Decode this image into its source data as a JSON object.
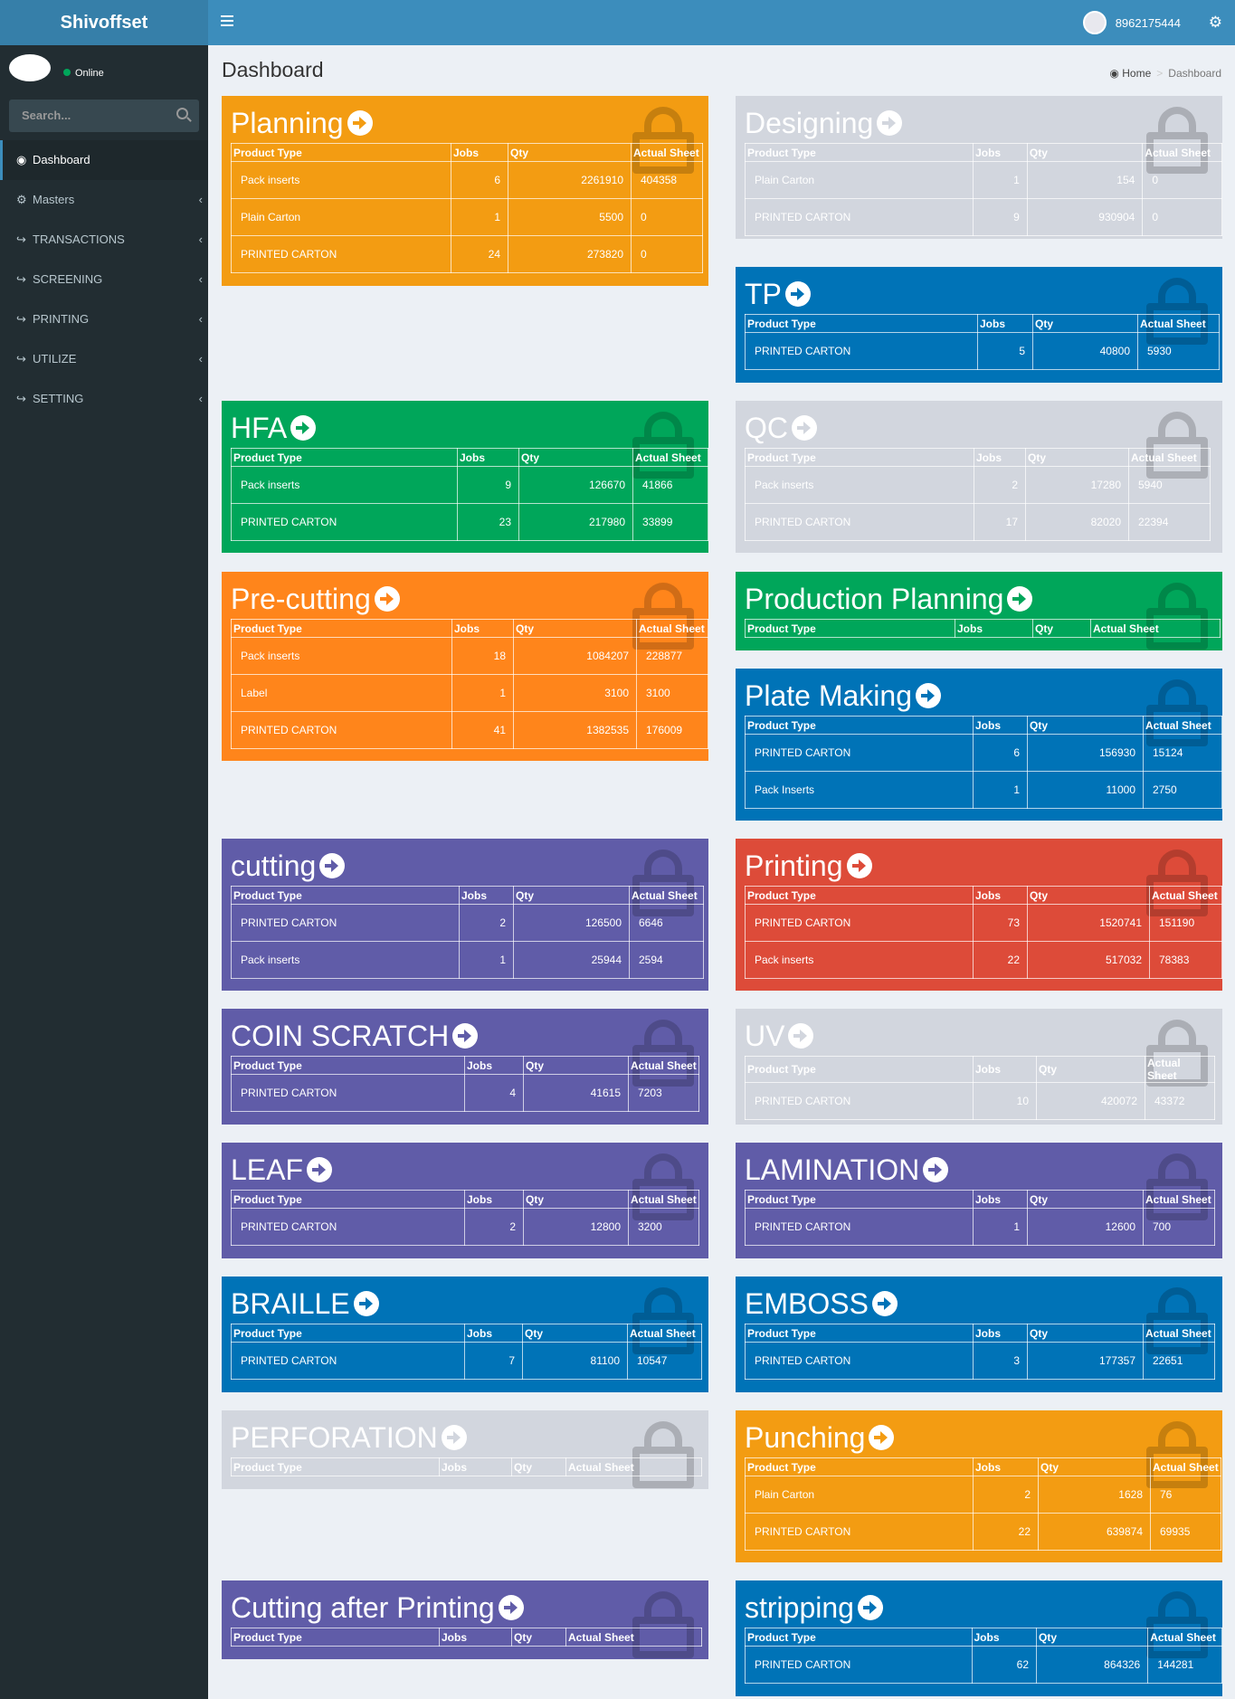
{
  "app": {
    "brand": "Shivoffset",
    "user_name": "8962175444",
    "status": "Online",
    "search_placeholder": "Search..."
  },
  "nav": [
    {
      "label": "Dashboard",
      "icon": "dashboard-icon",
      "active": true,
      "chev": false
    },
    {
      "label": "Masters",
      "icon": "gear-icon",
      "chev": true
    },
    {
      "label": "TRANSACTIONS",
      "icon": "share-icon",
      "chev": true
    },
    {
      "label": "SCREENING",
      "icon": "share-icon",
      "chev": true
    },
    {
      "label": "PRINTING",
      "icon": "share-icon",
      "chev": true
    },
    {
      "label": "UTILIZE",
      "icon": "share-icon",
      "chev": true
    },
    {
      "label": "SETTING",
      "icon": "share-icon",
      "chev": true
    }
  ],
  "page": {
    "title": "Dashboard",
    "breadcrumb_home": "Home",
    "breadcrumb_current": "Dashboard"
  },
  "columns": [
    "Product Type",
    "Jobs",
    "Qty",
    "Actual Sheet"
  ],
  "colors": {
    "orange": "#f39c12",
    "lightgray": "#d2d6de",
    "blue": "#0073b7",
    "green": "#00a65a",
    "orange2": "#ff851b",
    "purple": "#605ca8",
    "red": "#dd4b39"
  },
  "boxes": [
    {
      "title": "Planning",
      "color": "orange",
      "rows": [
        [
          "Pack inserts",
          "6",
          "2261910",
          "404358"
        ],
        [
          "Plain Carton",
          "1",
          "5500",
          "0"
        ],
        [
          "PRINTED CARTON",
          "24",
          "273820",
          "0"
        ]
      ]
    },
    {
      "title": "Designing",
      "color": "lightgray",
      "rows": [
        [
          "Plain Carton",
          "1",
          "154",
          "0"
        ],
        [
          "PRINTED CARTON",
          "9",
          "930904",
          "0"
        ]
      ]
    },
    {
      "title": "TP",
      "color": "blue",
      "rows": [
        [
          "PRINTED CARTON",
          "5",
          "40800",
          "5930"
        ]
      ]
    },
    {
      "title": "HFA",
      "color": "green",
      "rows": [
        [
          "Pack inserts",
          "9",
          "126670",
          "41866"
        ],
        [
          "PRINTED CARTON",
          "23",
          "217980",
          "33899"
        ]
      ]
    },
    {
      "title": "QC",
      "color": "lightgray",
      "rows": [
        [
          "Pack inserts",
          "2",
          "17280",
          "5940"
        ],
        [
          "PRINTED CARTON",
          "17",
          "82020",
          "22394"
        ]
      ]
    },
    {
      "title": "Pre-cutting",
      "color": "orange2",
      "rows": [
        [
          "Pack inserts",
          "18",
          "1084207",
          "228877"
        ],
        [
          "Label",
          "1",
          "3100",
          "3100"
        ],
        [
          "PRINTED CARTON",
          "41",
          "1382535",
          "176009"
        ]
      ]
    },
    {
      "title": "Production Planning",
      "color": "green",
      "rows": []
    },
    {
      "title": "Plate Making",
      "color": "blue",
      "rows": [
        [
          "PRINTED CARTON",
          "6",
          "156930",
          "15124"
        ],
        [
          "Pack Inserts",
          "1",
          "11000",
          "2750"
        ]
      ]
    },
    {
      "title": "cutting",
      "color": "purple",
      "rows": [
        [
          "PRINTED CARTON",
          "2",
          "126500",
          "6646"
        ],
        [
          "Pack inserts",
          "1",
          "25944",
          "2594"
        ]
      ]
    },
    {
      "title": "Printing",
      "color": "red",
      "rows": [
        [
          "PRINTED CARTON",
          "73",
          "1520741",
          "151190"
        ],
        [
          "Pack inserts",
          "22",
          "517032",
          "78383"
        ]
      ]
    },
    {
      "title": "COIN SCRATCH",
      "color": "purple",
      "rows": [
        [
          "PRINTED CARTON",
          "4",
          "41615",
          "7203"
        ]
      ]
    },
    {
      "title": "UV",
      "color": "lightgray",
      "rows": [
        [
          "PRINTED CARTON",
          "10",
          "420072",
          "43372"
        ]
      ]
    },
    {
      "title": "LEAF",
      "color": "purple",
      "rows": [
        [
          "PRINTED CARTON",
          "2",
          "12800",
          "3200"
        ]
      ]
    },
    {
      "title": "LAMINATION",
      "color": "purple",
      "rows": [
        [
          "PRINTED CARTON",
          "1",
          "12600",
          "700"
        ]
      ]
    },
    {
      "title": "BRAILLE",
      "color": "blue",
      "rows": [
        [
          "PRINTED CARTON",
          "7",
          "81100",
          "10547"
        ]
      ]
    },
    {
      "title": "EMBOSS",
      "color": "blue",
      "rows": [
        [
          "PRINTED CARTON",
          "3",
          "177357",
          "22651"
        ]
      ]
    },
    {
      "title": "PERFORATION",
      "color": "lightgray",
      "rows": []
    },
    {
      "title": "Punching",
      "color": "orange",
      "rows": [
        [
          "Plain Carton",
          "2",
          "1628",
          "76"
        ],
        [
          "PRINTED CARTON",
          "22",
          "639874",
          "69935"
        ]
      ]
    },
    {
      "title": "Cutting after Printing",
      "color": "purple",
      "rows": []
    },
    {
      "title": "stripping",
      "color": "blue",
      "rows": [
        [
          "PRINTED CARTON",
          "62",
          "864326",
          "144281"
        ]
      ]
    }
  ]
}
